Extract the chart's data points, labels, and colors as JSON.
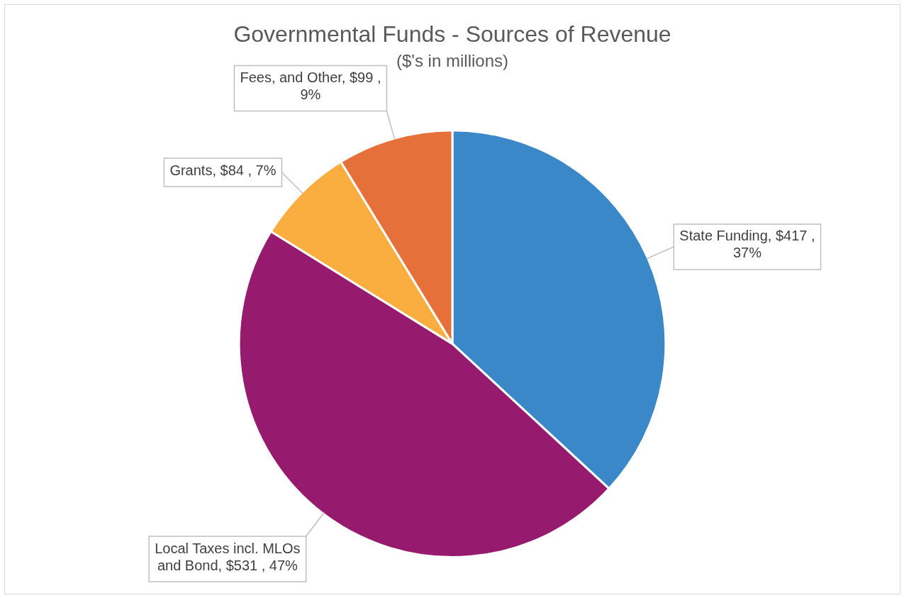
{
  "chart_data": {
    "type": "pie",
    "title": "Governmental Funds - Sources of Revenue",
    "subtitle": "($'s in millions)",
    "categories": [
      "State Funding",
      "Local Taxes incl. MLOs and Bond",
      "Grants",
      "Fees, and Other"
    ],
    "values": [
      417,
      531,
      84,
      99
    ],
    "colors": [
      "#3a88c8",
      "#961b6f",
      "#fbae40",
      "#e6703a"
    ],
    "value_labels": [
      "$417 , 37%",
      "$531 , 47%",
      "$84 , 7%",
      "$99 , 9%"
    ],
    "legend": false
  }
}
